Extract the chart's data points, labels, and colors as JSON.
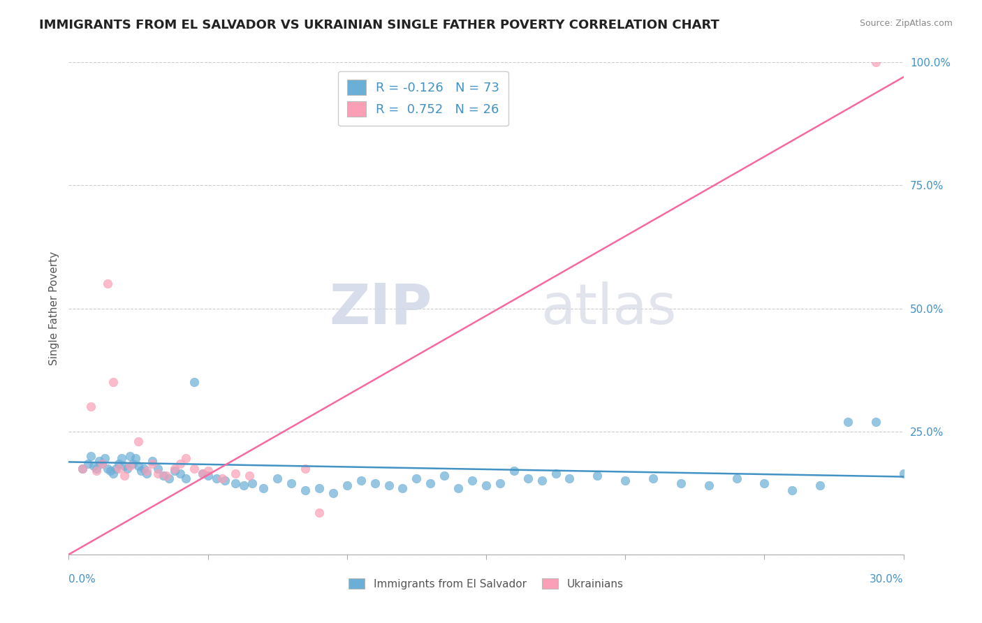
{
  "title": "IMMIGRANTS FROM EL SALVADOR VS UKRAINIAN SINGLE FATHER POVERTY CORRELATION CHART",
  "source": "Source: ZipAtlas.com",
  "ylabel": "Single Father Poverty",
  "legend_label1": "Immigrants from El Salvador",
  "legend_label2": "Ukrainians",
  "R1": -0.126,
  "N1": 73,
  "R2": 0.752,
  "N2": 26,
  "blue_color": "#6baed6",
  "pink_color": "#fa9fb5",
  "blue_line_color": "#4292c6",
  "pink_line_color": "#f768a1",
  "watermark_zip": "ZIP",
  "watermark_atlas": "atlas",
  "xlim": [
    0.0,
    0.3
  ],
  "ylim": [
    0.0,
    1.0
  ],
  "yticks": [
    0.0,
    0.25,
    0.5,
    0.75,
    1.0
  ],
  "ytick_labels": [
    "",
    "25.0%",
    "50.0%",
    "75.0%",
    "100.0%"
  ],
  "blue_scatter_x": [
    0.005,
    0.007,
    0.008,
    0.009,
    0.01,
    0.011,
    0.012,
    0.013,
    0.014,
    0.015,
    0.016,
    0.017,
    0.018,
    0.019,
    0.02,
    0.021,
    0.022,
    0.023,
    0.024,
    0.025,
    0.026,
    0.027,
    0.028,
    0.03,
    0.032,
    0.034,
    0.036,
    0.038,
    0.04,
    0.042,
    0.045,
    0.048,
    0.05,
    0.053,
    0.056,
    0.06,
    0.063,
    0.066,
    0.07,
    0.075,
    0.08,
    0.085,
    0.09,
    0.095,
    0.1,
    0.105,
    0.11,
    0.115,
    0.12,
    0.125,
    0.13,
    0.135,
    0.14,
    0.145,
    0.15,
    0.155,
    0.16,
    0.165,
    0.17,
    0.175,
    0.18,
    0.19,
    0.2,
    0.21,
    0.22,
    0.23,
    0.24,
    0.25,
    0.26,
    0.27,
    0.28,
    0.29,
    0.3
  ],
  "blue_scatter_y": [
    0.175,
    0.185,
    0.2,
    0.18,
    0.175,
    0.19,
    0.185,
    0.195,
    0.175,
    0.17,
    0.165,
    0.175,
    0.185,
    0.195,
    0.18,
    0.175,
    0.2,
    0.185,
    0.195,
    0.18,
    0.17,
    0.175,
    0.165,
    0.19,
    0.175,
    0.16,
    0.155,
    0.17,
    0.165,
    0.155,
    0.35,
    0.165,
    0.16,
    0.155,
    0.15,
    0.145,
    0.14,
    0.145,
    0.135,
    0.155,
    0.145,
    0.13,
    0.135,
    0.125,
    0.14,
    0.15,
    0.145,
    0.14,
    0.135,
    0.155,
    0.145,
    0.16,
    0.135,
    0.15,
    0.14,
    0.145,
    0.17,
    0.155,
    0.15,
    0.165,
    0.155,
    0.16,
    0.15,
    0.155,
    0.145,
    0.14,
    0.155,
    0.145,
    0.13,
    0.14,
    0.27,
    0.27,
    0.165
  ],
  "pink_scatter_x": [
    0.005,
    0.008,
    0.01,
    0.012,
    0.014,
    0.016,
    0.018,
    0.02,
    0.022,
    0.025,
    0.028,
    0.03,
    0.032,
    0.035,
    0.038,
    0.04,
    0.042,
    0.045,
    0.048,
    0.05,
    0.055,
    0.06,
    0.065,
    0.085,
    0.09,
    0.29
  ],
  "pink_scatter_y": [
    0.175,
    0.3,
    0.17,
    0.185,
    0.55,
    0.35,
    0.175,
    0.16,
    0.18,
    0.23,
    0.17,
    0.185,
    0.165,
    0.16,
    0.175,
    0.185,
    0.195,
    0.175,
    0.165,
    0.17,
    0.155,
    0.165,
    0.16,
    0.175,
    0.085,
    1.0
  ],
  "blue_trend_x": [
    0.0,
    0.3
  ],
  "blue_trend_y": [
    0.188,
    0.158
  ],
  "pink_trend_x": [
    0.0,
    0.3
  ],
  "pink_trend_y": [
    0.0,
    0.97
  ]
}
